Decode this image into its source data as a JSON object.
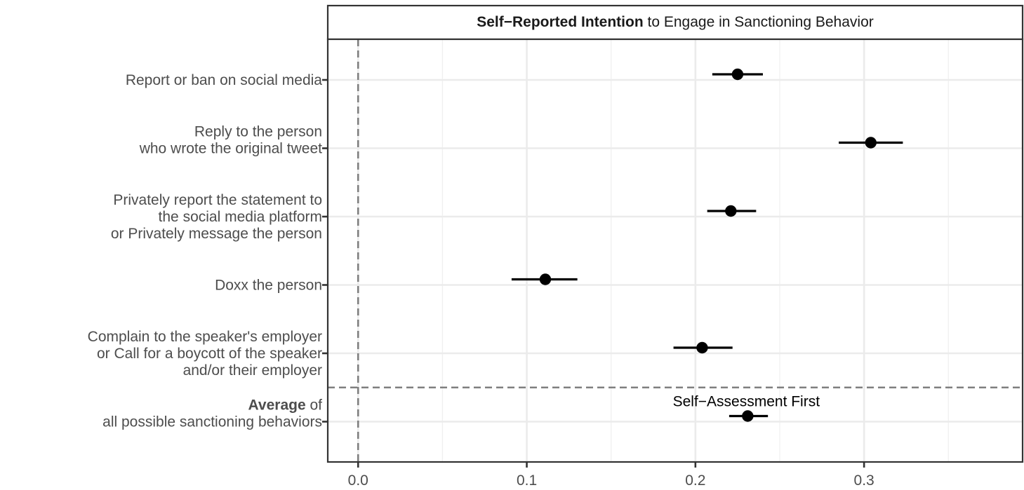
{
  "chart_data": {
    "type": "scatter",
    "title_bold": "Self−Reported Intention",
    "title_rest": " to Engage in Sanctioning Behavior",
    "xlabel": "",
    "ylabel": "",
    "xlim": [
      -0.018,
      0.394
    ],
    "x_ticks": [
      0.0,
      0.1,
      0.2,
      0.3
    ],
    "x_tick_labels": [
      "0.0",
      "0.1",
      "0.2",
      "0.3"
    ],
    "x_minor_ticks": [
      0.05,
      0.15,
      0.25,
      0.35
    ],
    "reference_line_x": 0.0,
    "grid": true,
    "legend": "none",
    "categories": [
      {
        "lines": [
          {
            "text": "Report or ban on social media"
          }
        ],
        "estimate": 0.225,
        "ci_low": 0.21,
        "ci_high": 0.24
      },
      {
        "lines": [
          {
            "text": "Reply to the person"
          },
          {
            "text": "who wrote the original tweet"
          }
        ],
        "estimate": 0.304,
        "ci_low": 0.285,
        "ci_high": 0.323
      },
      {
        "lines": [
          {
            "text": "Privately report the statement to"
          },
          {
            "text": "the social media platform"
          },
          {
            "text": "or Privately message the person"
          }
        ],
        "estimate": 0.221,
        "ci_low": 0.207,
        "ci_high": 0.236
      },
      {
        "lines": [
          {
            "text": "Doxx the person"
          }
        ],
        "estimate": 0.111,
        "ci_low": 0.091,
        "ci_high": 0.13
      },
      {
        "lines": [
          {
            "text": "Complain to the speaker's employer"
          },
          {
            "text": "or Call for a boycott of the speaker"
          },
          {
            "text": "and/or their employer"
          }
        ],
        "estimate": 0.204,
        "ci_low": 0.187,
        "ci_high": 0.222
      },
      {
        "lines": [
          {
            "bold": "Average",
            "text": " of"
          },
          {
            "text": "all possible sanctioning behaviors"
          }
        ],
        "estimate": 0.231,
        "ci_low": 0.22,
        "ci_high": 0.243,
        "annotation": "Self−Assessment First"
      }
    ],
    "separator_after_category_index": 4
  }
}
